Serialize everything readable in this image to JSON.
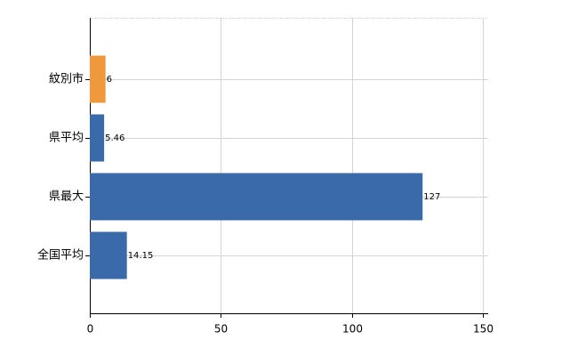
{
  "chart_data": {
    "type": "hbar",
    "categories": [
      "紋別市",
      "県平均",
      "県最大",
      "全国平均"
    ],
    "values": [
      6,
      5.46,
      127,
      14.15
    ],
    "colors": [
      "#f0993c",
      "#3a6aaa",
      "#3a6aaa",
      "#3a6aaa"
    ],
    "xlim": [
      0,
      150
    ],
    "xticks": [
      0,
      50,
      100,
      150
    ],
    "grid": true
  }
}
